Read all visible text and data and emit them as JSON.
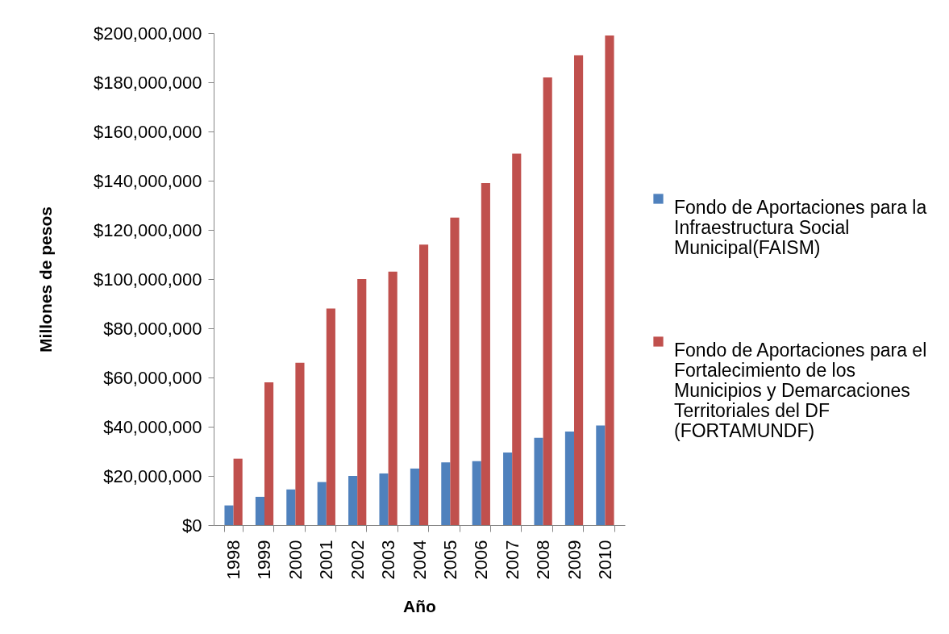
{
  "chart_data": {
    "type": "bar",
    "xlabel": "Año",
    "ylabel": "Millones de pesos",
    "categories": [
      "1998",
      "1999",
      "2000",
      "2001",
      "2002",
      "2003",
      "2004",
      "2005",
      "2006",
      "2007",
      "2008",
      "2009",
      "2010"
    ],
    "series": [
      {
        "name": "Fondo de Aportaciones para la Infraestructura Social Municipal(FAISM)",
        "color": "#4f81bd",
        "values": [
          8000000,
          11500000,
          14500000,
          17500000,
          20000000,
          21000000,
          23000000,
          25500000,
          26000000,
          29500000,
          35500000,
          38000000,
          40500000
        ]
      },
      {
        "name": "Fondo de Aportaciones para el Fortalecimiento de los Municipios y Demarcaciones Territoriales del DF (FORTAMUNDF)",
        "color": "#c0504d",
        "values": [
          27000000,
          58000000,
          66000000,
          88000000,
          100000000,
          103000000,
          114000000,
          125000000,
          139000000,
          151000000,
          182000000,
          191000000,
          199000000
        ]
      }
    ],
    "ylim": [
      0,
      200000000
    ],
    "yticks": [
      {
        "value": 0,
        "label": "$0"
      },
      {
        "value": 20000000,
        "label": "$20,000,000"
      },
      {
        "value": 40000000,
        "label": "$40,000,000"
      },
      {
        "value": 60000000,
        "label": "$60,000,000"
      },
      {
        "value": 80000000,
        "label": "$80,000,000"
      },
      {
        "value": 100000000,
        "label": "$100,000,000"
      },
      {
        "value": 120000000,
        "label": "$120,000,000"
      },
      {
        "value": 140000000,
        "label": "$140,000,000"
      },
      {
        "value": 160000000,
        "label": "$160,000,000"
      },
      {
        "value": 180000000,
        "label": "$180,000,000"
      },
      {
        "value": 200000000,
        "label": "$200,000,000"
      }
    ],
    "legend": "right"
  }
}
